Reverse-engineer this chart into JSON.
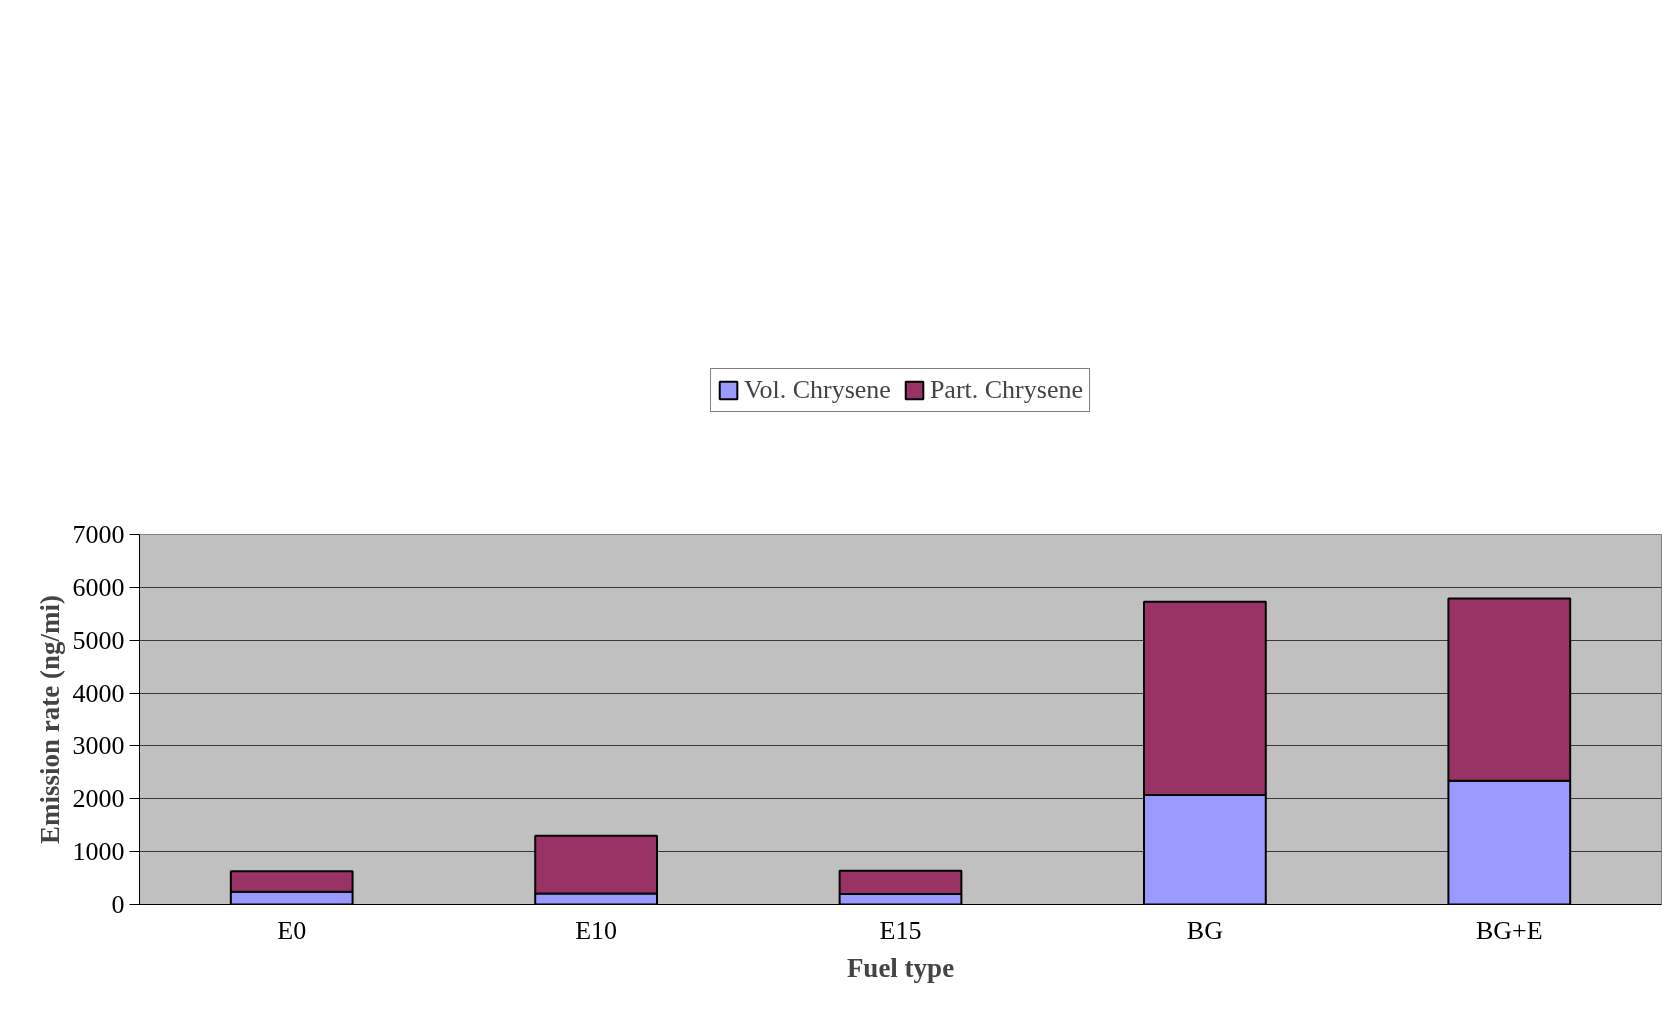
{
  "chart_data": {
    "type": "bar",
    "stacked": true,
    "xlabel": "Fuel type",
    "ylabel": "Emission rate (ng/mi)",
    "categories": [
      "E0",
      "E10",
      "E15",
      "BG",
      "BG+E"
    ],
    "series": [
      {
        "name": "Vol. Chrysene",
        "color": "#9999ff",
        "values": [
          240,
          210,
          200,
          2070,
          2340
        ]
      },
      {
        "name": "Part. Chrysene",
        "color": "#993366",
        "values": [
          390,
          1090,
          440,
          3660,
          3450
        ]
      }
    ],
    "ylim": [
      0,
      7000
    ],
    "yticks": [
      0,
      1000,
      2000,
      3000,
      4000,
      5000,
      6000,
      7000
    ],
    "grid": "y",
    "legend": "top"
  }
}
